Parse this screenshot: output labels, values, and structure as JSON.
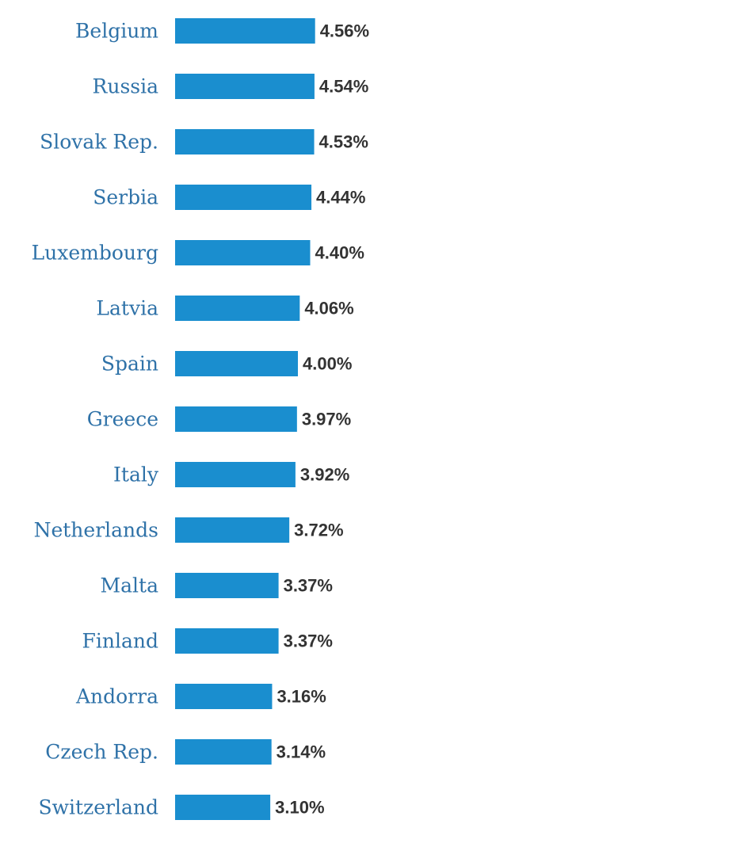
{
  "colors": {
    "bar": "#1a8ecf",
    "category_label": "#2f72a8",
    "value_label": "#333333",
    "background": "#ffffff"
  },
  "chart_data": {
    "type": "bar",
    "orientation": "horizontal",
    "categories": [
      "Belgium",
      "Russia",
      "Slovak Rep.",
      "Serbia",
      "Luxembourg",
      "Latvia",
      "Spain",
      "Greece",
      "Italy",
      "Netherlands",
      "Malta",
      "Finland",
      "Andorra",
      "Czech Rep.",
      "Switzerland"
    ],
    "values": [
      4.56,
      4.54,
      4.53,
      4.44,
      4.4,
      4.06,
      4.0,
      3.97,
      3.92,
      3.72,
      3.37,
      3.37,
      3.16,
      3.14,
      3.1
    ],
    "value_labels": [
      "4.56%",
      "4.54%",
      "4.53%",
      "4.44%",
      "4.40%",
      "4.06%",
      "4.00%",
      "3.97%",
      "3.92%",
      "3.72%",
      "3.37%",
      "3.37%",
      "3.16%",
      "3.14%",
      "3.10%"
    ],
    "unit": "%",
    "xlim": [
      0,
      18.4
    ],
    "grid": false,
    "legend": "none"
  }
}
